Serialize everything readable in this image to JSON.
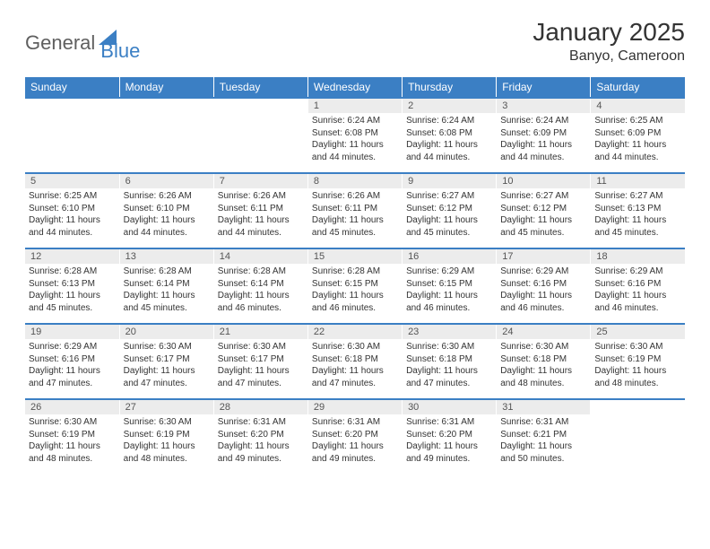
{
  "logo": {
    "text1": "General",
    "text2": "Blue",
    "shape_color": "#3b7fc4",
    "text1_color": "#5f5f5f"
  },
  "title": "January 2025",
  "subtitle": "Banyo, Cameroon",
  "colors": {
    "header_bg": "#3b7fc4",
    "header_text": "#ffffff",
    "daynum_bg": "#ececec",
    "daynum_text": "#555555",
    "body_text": "#333333",
    "row_border": "#3b7fc4"
  },
  "day_headers": [
    "Sunday",
    "Monday",
    "Tuesday",
    "Wednesday",
    "Thursday",
    "Friday",
    "Saturday"
  ],
  "weeks": [
    [
      {
        "n": "",
        "sr": "",
        "ss": "",
        "dl": ""
      },
      {
        "n": "",
        "sr": "",
        "ss": "",
        "dl": ""
      },
      {
        "n": "",
        "sr": "",
        "ss": "",
        "dl": ""
      },
      {
        "n": "1",
        "sr": "Sunrise: 6:24 AM",
        "ss": "Sunset: 6:08 PM",
        "dl": "Daylight: 11 hours and 44 minutes."
      },
      {
        "n": "2",
        "sr": "Sunrise: 6:24 AM",
        "ss": "Sunset: 6:08 PM",
        "dl": "Daylight: 11 hours and 44 minutes."
      },
      {
        "n": "3",
        "sr": "Sunrise: 6:24 AM",
        "ss": "Sunset: 6:09 PM",
        "dl": "Daylight: 11 hours and 44 minutes."
      },
      {
        "n": "4",
        "sr": "Sunrise: 6:25 AM",
        "ss": "Sunset: 6:09 PM",
        "dl": "Daylight: 11 hours and 44 minutes."
      }
    ],
    [
      {
        "n": "5",
        "sr": "Sunrise: 6:25 AM",
        "ss": "Sunset: 6:10 PM",
        "dl": "Daylight: 11 hours and 44 minutes."
      },
      {
        "n": "6",
        "sr": "Sunrise: 6:26 AM",
        "ss": "Sunset: 6:10 PM",
        "dl": "Daylight: 11 hours and 44 minutes."
      },
      {
        "n": "7",
        "sr": "Sunrise: 6:26 AM",
        "ss": "Sunset: 6:11 PM",
        "dl": "Daylight: 11 hours and 44 minutes."
      },
      {
        "n": "8",
        "sr": "Sunrise: 6:26 AM",
        "ss": "Sunset: 6:11 PM",
        "dl": "Daylight: 11 hours and 45 minutes."
      },
      {
        "n": "9",
        "sr": "Sunrise: 6:27 AM",
        "ss": "Sunset: 6:12 PM",
        "dl": "Daylight: 11 hours and 45 minutes."
      },
      {
        "n": "10",
        "sr": "Sunrise: 6:27 AM",
        "ss": "Sunset: 6:12 PM",
        "dl": "Daylight: 11 hours and 45 minutes."
      },
      {
        "n": "11",
        "sr": "Sunrise: 6:27 AM",
        "ss": "Sunset: 6:13 PM",
        "dl": "Daylight: 11 hours and 45 minutes."
      }
    ],
    [
      {
        "n": "12",
        "sr": "Sunrise: 6:28 AM",
        "ss": "Sunset: 6:13 PM",
        "dl": "Daylight: 11 hours and 45 minutes."
      },
      {
        "n": "13",
        "sr": "Sunrise: 6:28 AM",
        "ss": "Sunset: 6:14 PM",
        "dl": "Daylight: 11 hours and 45 minutes."
      },
      {
        "n": "14",
        "sr": "Sunrise: 6:28 AM",
        "ss": "Sunset: 6:14 PM",
        "dl": "Daylight: 11 hours and 46 minutes."
      },
      {
        "n": "15",
        "sr": "Sunrise: 6:28 AM",
        "ss": "Sunset: 6:15 PM",
        "dl": "Daylight: 11 hours and 46 minutes."
      },
      {
        "n": "16",
        "sr": "Sunrise: 6:29 AM",
        "ss": "Sunset: 6:15 PM",
        "dl": "Daylight: 11 hours and 46 minutes."
      },
      {
        "n": "17",
        "sr": "Sunrise: 6:29 AM",
        "ss": "Sunset: 6:16 PM",
        "dl": "Daylight: 11 hours and 46 minutes."
      },
      {
        "n": "18",
        "sr": "Sunrise: 6:29 AM",
        "ss": "Sunset: 6:16 PM",
        "dl": "Daylight: 11 hours and 46 minutes."
      }
    ],
    [
      {
        "n": "19",
        "sr": "Sunrise: 6:29 AM",
        "ss": "Sunset: 6:16 PM",
        "dl": "Daylight: 11 hours and 47 minutes."
      },
      {
        "n": "20",
        "sr": "Sunrise: 6:30 AM",
        "ss": "Sunset: 6:17 PM",
        "dl": "Daylight: 11 hours and 47 minutes."
      },
      {
        "n": "21",
        "sr": "Sunrise: 6:30 AM",
        "ss": "Sunset: 6:17 PM",
        "dl": "Daylight: 11 hours and 47 minutes."
      },
      {
        "n": "22",
        "sr": "Sunrise: 6:30 AM",
        "ss": "Sunset: 6:18 PM",
        "dl": "Daylight: 11 hours and 47 minutes."
      },
      {
        "n": "23",
        "sr": "Sunrise: 6:30 AM",
        "ss": "Sunset: 6:18 PM",
        "dl": "Daylight: 11 hours and 47 minutes."
      },
      {
        "n": "24",
        "sr": "Sunrise: 6:30 AM",
        "ss": "Sunset: 6:18 PM",
        "dl": "Daylight: 11 hours and 48 minutes."
      },
      {
        "n": "25",
        "sr": "Sunrise: 6:30 AM",
        "ss": "Sunset: 6:19 PM",
        "dl": "Daylight: 11 hours and 48 minutes."
      }
    ],
    [
      {
        "n": "26",
        "sr": "Sunrise: 6:30 AM",
        "ss": "Sunset: 6:19 PM",
        "dl": "Daylight: 11 hours and 48 minutes."
      },
      {
        "n": "27",
        "sr": "Sunrise: 6:30 AM",
        "ss": "Sunset: 6:19 PM",
        "dl": "Daylight: 11 hours and 48 minutes."
      },
      {
        "n": "28",
        "sr": "Sunrise: 6:31 AM",
        "ss": "Sunset: 6:20 PM",
        "dl": "Daylight: 11 hours and 49 minutes."
      },
      {
        "n": "29",
        "sr": "Sunrise: 6:31 AM",
        "ss": "Sunset: 6:20 PM",
        "dl": "Daylight: 11 hours and 49 minutes."
      },
      {
        "n": "30",
        "sr": "Sunrise: 6:31 AM",
        "ss": "Sunset: 6:20 PM",
        "dl": "Daylight: 11 hours and 49 minutes."
      },
      {
        "n": "31",
        "sr": "Sunrise: 6:31 AM",
        "ss": "Sunset: 6:21 PM",
        "dl": "Daylight: 11 hours and 50 minutes."
      },
      {
        "n": "",
        "sr": "",
        "ss": "",
        "dl": ""
      }
    ]
  ]
}
